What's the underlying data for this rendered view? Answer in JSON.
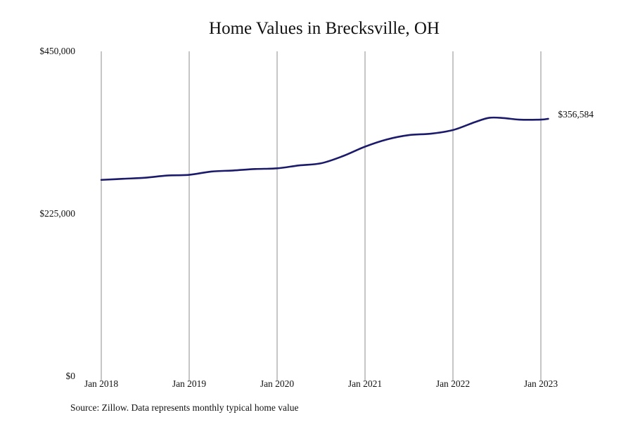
{
  "chart_data": {
    "type": "line",
    "title": "Home Values in Brecksville, OH",
    "xlabel": "",
    "ylabel": "",
    "ylim": [
      0,
      450000
    ],
    "y_ticks": [
      {
        "value": 0,
        "label": "$0"
      },
      {
        "value": 225000,
        "label": "$225,000"
      },
      {
        "value": 450000,
        "label": "$450,000"
      }
    ],
    "x_ticks": [
      {
        "value": "2018-01",
        "label": "Jan 2018"
      },
      {
        "value": "2019-01",
        "label": "Jan 2019"
      },
      {
        "value": "2020-01",
        "label": "Jan 2020"
      },
      {
        "value": "2021-01",
        "label": "Jan 2021"
      },
      {
        "value": "2022-01",
        "label": "Jan 2022"
      },
      {
        "value": "2023-01",
        "label": "Jan 2023"
      }
    ],
    "x_range": [
      "2017-12",
      "2023-03"
    ],
    "grid": {
      "vertical": true,
      "horizontal": false
    },
    "series": [
      {
        "color": "#1c1a6b",
        "points": [
          {
            "x": "2018-01",
            "y": 272000
          },
          {
            "x": "2018-04",
            "y": 273500
          },
          {
            "x": "2018-07",
            "y": 275000
          },
          {
            "x": "2018-10",
            "y": 278000
          },
          {
            "x": "2019-01",
            "y": 279000
          },
          {
            "x": "2019-04",
            "y": 283500
          },
          {
            "x": "2019-07",
            "y": 285000
          },
          {
            "x": "2019-10",
            "y": 287000
          },
          {
            "x": "2020-01",
            "y": 288000
          },
          {
            "x": "2020-04",
            "y": 292000
          },
          {
            "x": "2020-07",
            "y": 295000
          },
          {
            "x": "2020-10",
            "y": 305000
          },
          {
            "x": "2021-01",
            "y": 318000
          },
          {
            "x": "2021-04",
            "y": 328000
          },
          {
            "x": "2021-07",
            "y": 334000
          },
          {
            "x": "2021-10",
            "y": 336000
          },
          {
            "x": "2022-01",
            "y": 341000
          },
          {
            "x": "2022-04",
            "y": 352000
          },
          {
            "x": "2022-06",
            "y": 358000
          },
          {
            "x": "2022-08",
            "y": 357500
          },
          {
            "x": "2022-10",
            "y": 355500
          },
          {
            "x": "2023-01",
            "y": 355500
          },
          {
            "x": "2023-02",
            "y": 356584
          }
        ]
      }
    ],
    "annotations": [
      {
        "x": "2023-02",
        "y": 356584,
        "text": "$356,584"
      }
    ],
    "source": "Source: Zillow. Data represents monthly typical home value"
  }
}
